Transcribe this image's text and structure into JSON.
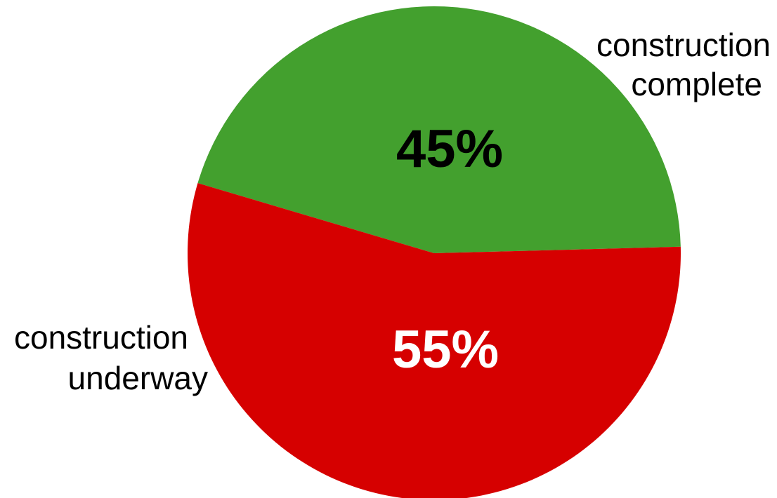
{
  "chart_data": {
    "type": "pie",
    "slices": [
      {
        "label_lines": [
          "construction",
          "complete"
        ],
        "value": 45,
        "value_label": "45%",
        "color": "#43a02e",
        "value_label_color": "#000000"
      },
      {
        "label_lines": [
          "construction",
          "underway"
        ],
        "value": 55,
        "value_label": "55%",
        "color": "#d60000",
        "value_label_color": "#ffffff"
      }
    ]
  }
}
